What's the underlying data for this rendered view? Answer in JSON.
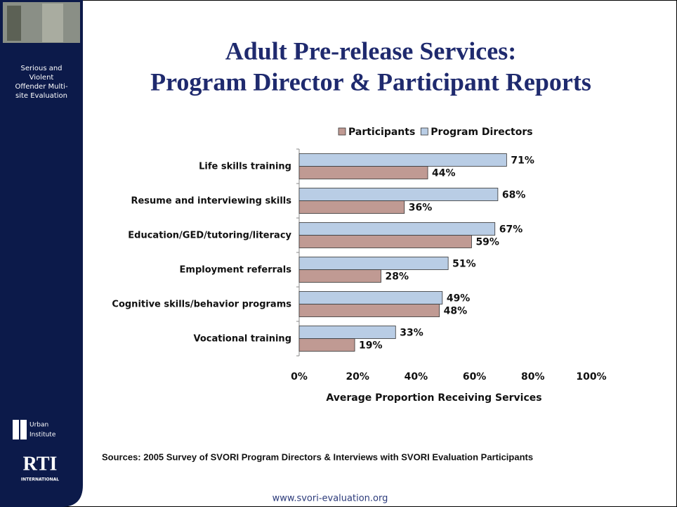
{
  "sidebar": {
    "caption_lines": [
      "Serious and",
      "Violent",
      "Offender Multi-",
      "site Evaluation"
    ],
    "urban_lines": [
      "Urban",
      "Institute"
    ],
    "rti": "RTI",
    "rti_sub": "INTERNATIONAL"
  },
  "title_lines": [
    "Adult Pre-release Services:",
    "Program Director & Participant Reports"
  ],
  "chart_data": {
    "type": "hbar",
    "categories": [
      "Life skills training",
      "Resume and interviewing skills",
      "Education/GED/tutoring/literacy",
      "Employment referrals",
      "Cognitive skills/behavior programs",
      "Vocational training"
    ],
    "series": [
      {
        "name": "Participants",
        "color": "#c09a93",
        "values": [
          44,
          36,
          59,
          28,
          48,
          19
        ],
        "value_labels": [
          "44%",
          "36%",
          "59%",
          "28%",
          "48%",
          "19%"
        ]
      },
      {
        "name": "Program Directors",
        "color": "#b9cde5",
        "values": [
          71,
          68,
          67,
          51,
          49,
          33
        ],
        "value_labels": [
          "71%",
          "68%",
          "67%",
          "51%",
          "49%",
          "33%"
        ]
      }
    ],
    "xlim": [
      0,
      100
    ],
    "xticks": [
      {
        "value": 0,
        "label": "0%"
      },
      {
        "value": 20,
        "label": "20%"
      },
      {
        "value": 40,
        "label": "40%"
      },
      {
        "value": 60,
        "label": "60%"
      },
      {
        "value": 80,
        "label": "80%"
      },
      {
        "value": 100,
        "label": "100%"
      }
    ],
    "x_label": "Average Proportion Receiving Services",
    "legend": "top",
    "grid": false
  },
  "source": "Sources: 2005 Survey of SVORI Program Directors & Interviews with SVORI Evaluation Participants",
  "footer": "www.svori-evaluation.org"
}
